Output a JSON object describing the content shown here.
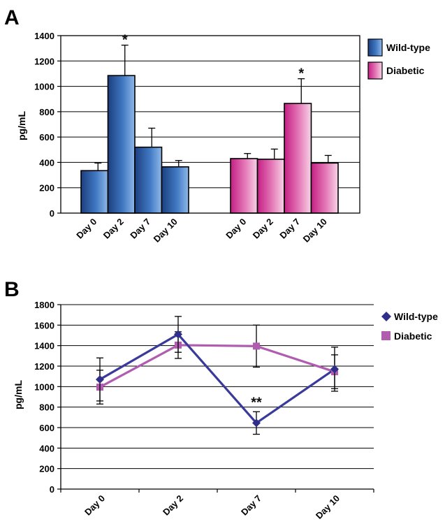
{
  "colors": {
    "wild_type_bar": "#2f5fa8",
    "diabetic_bar": "#d9489a",
    "wild_type_line": "#3a3a9a",
    "diabetic_line": "#b05db0",
    "grid": "#000000"
  },
  "chart_data": [
    {
      "panel": "A",
      "type": "bar",
      "ylabel": "pg/mL",
      "ylim": [
        0,
        1400
      ],
      "yticks": [
        0,
        200,
        400,
        600,
        800,
        1000,
        1200,
        1400
      ],
      "grid": true,
      "legend_position": "right",
      "groups": [
        {
          "name": "Wild-type",
          "categories": [
            "Day 0",
            "Day 2",
            "Day 7",
            "Day 10"
          ],
          "values": [
            335,
            1085,
            520,
            365
          ],
          "errors": [
            60,
            240,
            150,
            50
          ],
          "annotations": [
            "",
            "*",
            "",
            ""
          ]
        },
        {
          "name": "Diabetic",
          "categories": [
            "Day 0",
            "Day 2",
            "Day 7",
            "Day 10"
          ],
          "values": [
            430,
            425,
            865,
            395
          ],
          "errors": [
            40,
            80,
            195,
            60
          ],
          "annotations": [
            "",
            "",
            "*",
            ""
          ]
        }
      ]
    },
    {
      "panel": "B",
      "type": "line",
      "ylabel": "pg/mL",
      "ylim": [
        0,
        1800
      ],
      "yticks": [
        0,
        200,
        400,
        600,
        800,
        1000,
        1200,
        1400,
        1600,
        1800
      ],
      "grid": true,
      "legend_position": "right",
      "categories": [
        "Day 0",
        "Day 2",
        "Day 7",
        "Day 10"
      ],
      "series": [
        {
          "name": "Wild-type",
          "marker": "diamond",
          "values": [
            1070,
            1510,
            645,
            1170
          ],
          "errors": [
            210,
            175,
            110,
            215
          ],
          "annotations": [
            "",
            "",
            "**",
            ""
          ]
        },
        {
          "name": "Diabetic",
          "marker": "square",
          "values": [
            995,
            1405,
            1395,
            1145
          ],
          "errors": [
            165,
            130,
            205,
            165
          ],
          "annotations": [
            "",
            "",
            "",
            ""
          ]
        }
      ]
    }
  ]
}
